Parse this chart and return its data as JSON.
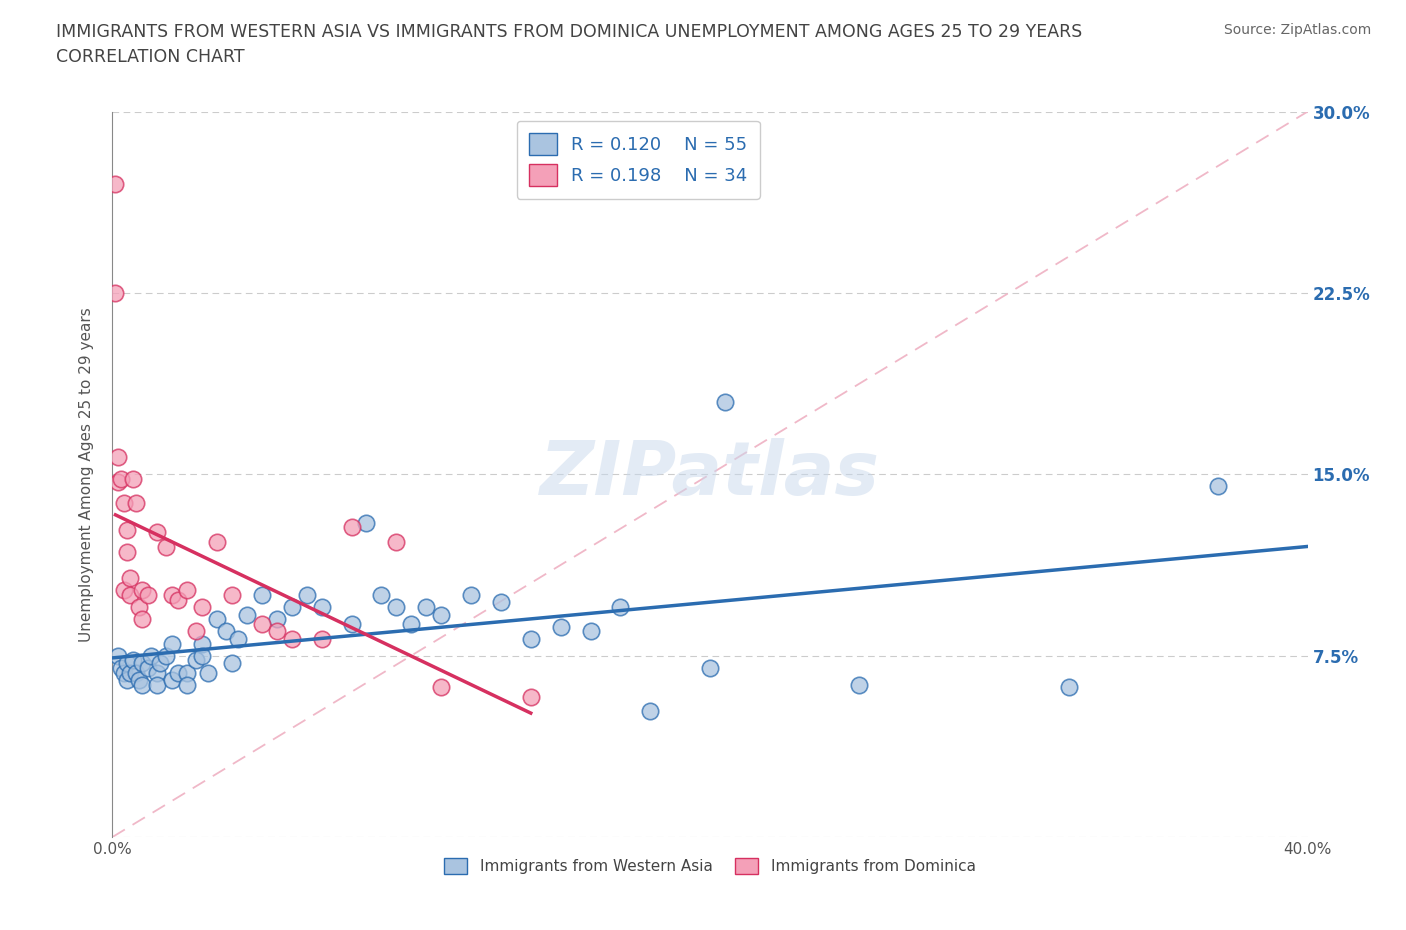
{
  "title_line1": "IMMIGRANTS FROM WESTERN ASIA VS IMMIGRANTS FROM DOMINICA UNEMPLOYMENT AMONG AGES 25 TO 29 YEARS",
  "title_line2": "CORRELATION CHART",
  "source_text": "Source: ZipAtlas.com",
  "ylabel": "Unemployment Among Ages 25 to 29 years",
  "xlim": [
    0.0,
    0.4
  ],
  "ylim": [
    0.0,
    0.3
  ],
  "xticks": [
    0.0,
    0.1,
    0.2,
    0.3,
    0.4
  ],
  "yticks": [
    0.0,
    0.075,
    0.15,
    0.225,
    0.3
  ],
  "blue_color": "#aac4e0",
  "pink_color": "#f4a0b8",
  "blue_line_color": "#2b6cb0",
  "pink_line_color": "#d63060",
  "diag_line_color": "#f0b8c8",
  "R_blue": 0.12,
  "N_blue": 55,
  "R_pink": 0.198,
  "N_pink": 34,
  "legend_blue_label": "Immigrants from Western Asia",
  "legend_pink_label": "Immigrants from Dominica",
  "watermark": "ZIPatlas",
  "blue_scatter_x": [
    0.002,
    0.003,
    0.004,
    0.005,
    0.005,
    0.006,
    0.007,
    0.008,
    0.009,
    0.01,
    0.01,
    0.012,
    0.013,
    0.015,
    0.015,
    0.016,
    0.018,
    0.02,
    0.02,
    0.022,
    0.025,
    0.025,
    0.028,
    0.03,
    0.03,
    0.032,
    0.035,
    0.038,
    0.04,
    0.042,
    0.045,
    0.05,
    0.055,
    0.06,
    0.065,
    0.07,
    0.08,
    0.085,
    0.09,
    0.095,
    0.1,
    0.105,
    0.11,
    0.12,
    0.13,
    0.14,
    0.15,
    0.16,
    0.17,
    0.18,
    0.2,
    0.205,
    0.25,
    0.32,
    0.37
  ],
  "blue_scatter_y": [
    0.075,
    0.07,
    0.068,
    0.072,
    0.065,
    0.068,
    0.073,
    0.068,
    0.065,
    0.072,
    0.063,
    0.07,
    0.075,
    0.068,
    0.063,
    0.072,
    0.075,
    0.08,
    0.065,
    0.068,
    0.068,
    0.063,
    0.073,
    0.08,
    0.075,
    0.068,
    0.09,
    0.085,
    0.072,
    0.082,
    0.092,
    0.1,
    0.09,
    0.095,
    0.1,
    0.095,
    0.088,
    0.13,
    0.1,
    0.095,
    0.088,
    0.095,
    0.092,
    0.1,
    0.097,
    0.082,
    0.087,
    0.085,
    0.095,
    0.052,
    0.07,
    0.18,
    0.063,
    0.062,
    0.145
  ],
  "pink_scatter_x": [
    0.001,
    0.001,
    0.002,
    0.002,
    0.003,
    0.004,
    0.004,
    0.005,
    0.005,
    0.006,
    0.006,
    0.007,
    0.008,
    0.009,
    0.01,
    0.01,
    0.012,
    0.015,
    0.018,
    0.02,
    0.022,
    0.025,
    0.028,
    0.03,
    0.035,
    0.04,
    0.05,
    0.055,
    0.06,
    0.07,
    0.08,
    0.095,
    0.11,
    0.14
  ],
  "pink_scatter_y": [
    0.27,
    0.225,
    0.157,
    0.147,
    0.148,
    0.138,
    0.102,
    0.127,
    0.118,
    0.107,
    0.1,
    0.148,
    0.138,
    0.095,
    0.102,
    0.09,
    0.1,
    0.126,
    0.12,
    0.1,
    0.098,
    0.102,
    0.085,
    0.095,
    0.122,
    0.1,
    0.088,
    0.085,
    0.082,
    0.082,
    0.128,
    0.122,
    0.062,
    0.058
  ]
}
